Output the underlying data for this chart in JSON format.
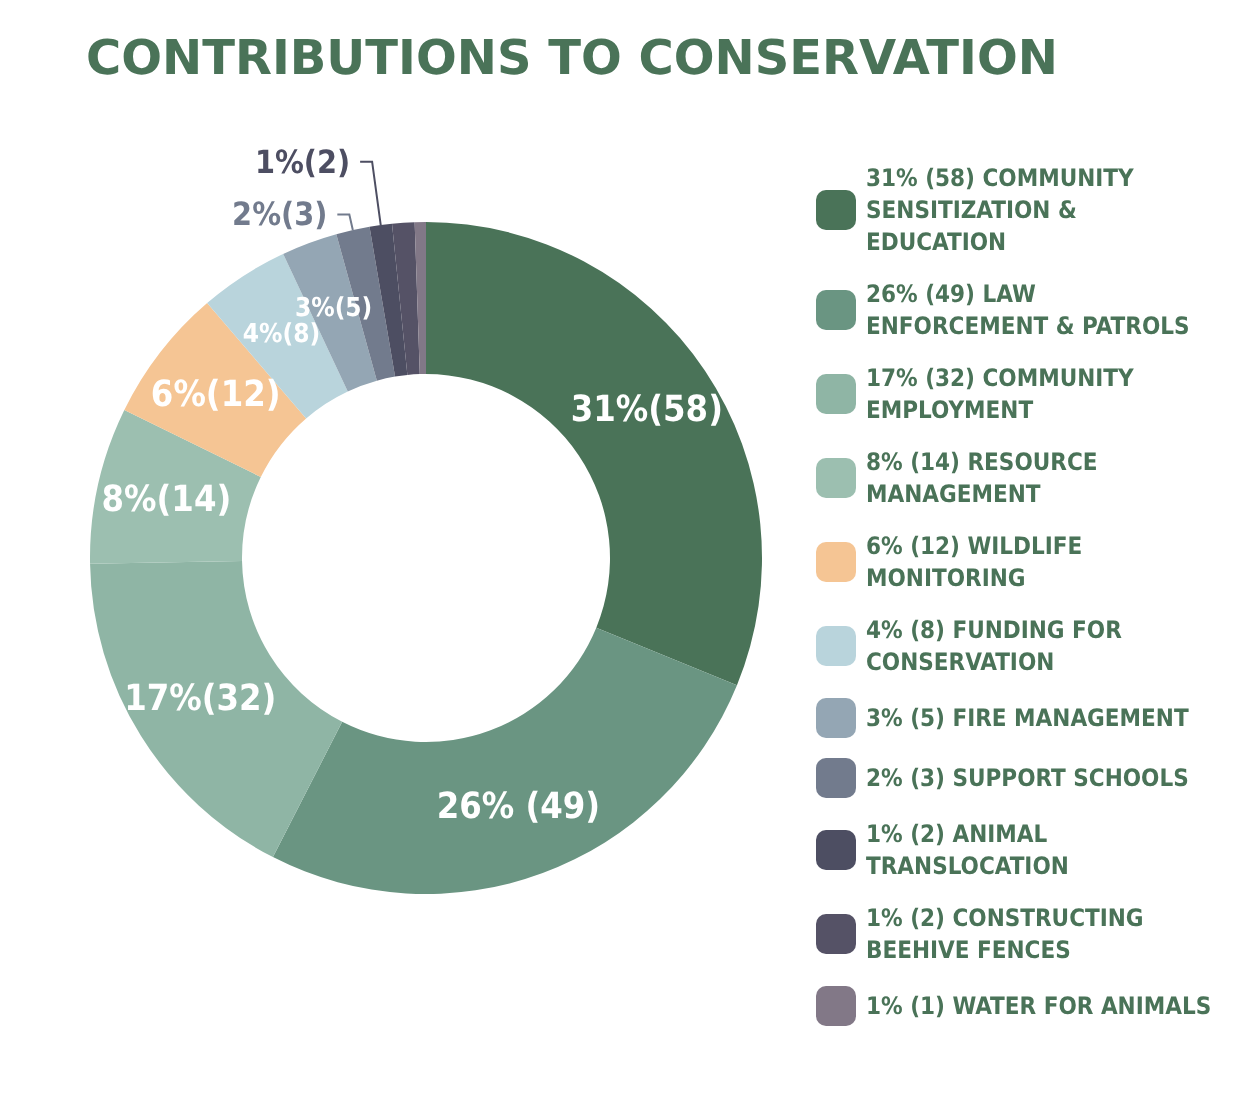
{
  "chart_data": {
    "type": "donut",
    "title": "CONTRIBUTIONS TO CONSERVATION",
    "categories": [
      "31% (58) COMMUNITY SENSITIZATION & EDUCATION",
      "26% (49) LAW ENFORCEMENT & PATROLS",
      "17% (32) COMMUNITY EMPLOYMENT",
      "8% (14) RESOURCE MANAGEMENT",
      "6% (12) WILDLIFE MONITORING",
      "4% (8) FUNDING FOR CONSERVATION",
      "3% (5) FIRE MANAGEMENT",
      "2% (3) SUPPORT SCHOOLS",
      "1% (2) ANIMAL TRANSLOCATION",
      "1% (2) CONSTRUCTING BEEHIVE FENCES",
      "1% (1) WATER FOR ANIMALS"
    ],
    "values": [
      58,
      49,
      32,
      14,
      12,
      8,
      5,
      3,
      2,
      2,
      1
    ],
    "value_labels": [
      "31%(58)",
      "26% (49)",
      "17%(32)",
      "8%(14)",
      "6%(12)",
      "4%(8)",
      "3%(5)",
      "2%(3)",
      "1%(2)",
      null,
      null
    ],
    "colors": [
      "#4a7358",
      "#6a9582",
      "#8fb5a5",
      "#9cbfb0",
      "#f5c594",
      "#b9d4dc",
      "#94a6b4",
      "#727b8d",
      "#4d4e62",
      "#555266",
      "#827887"
    ],
    "legend": "right"
  }
}
